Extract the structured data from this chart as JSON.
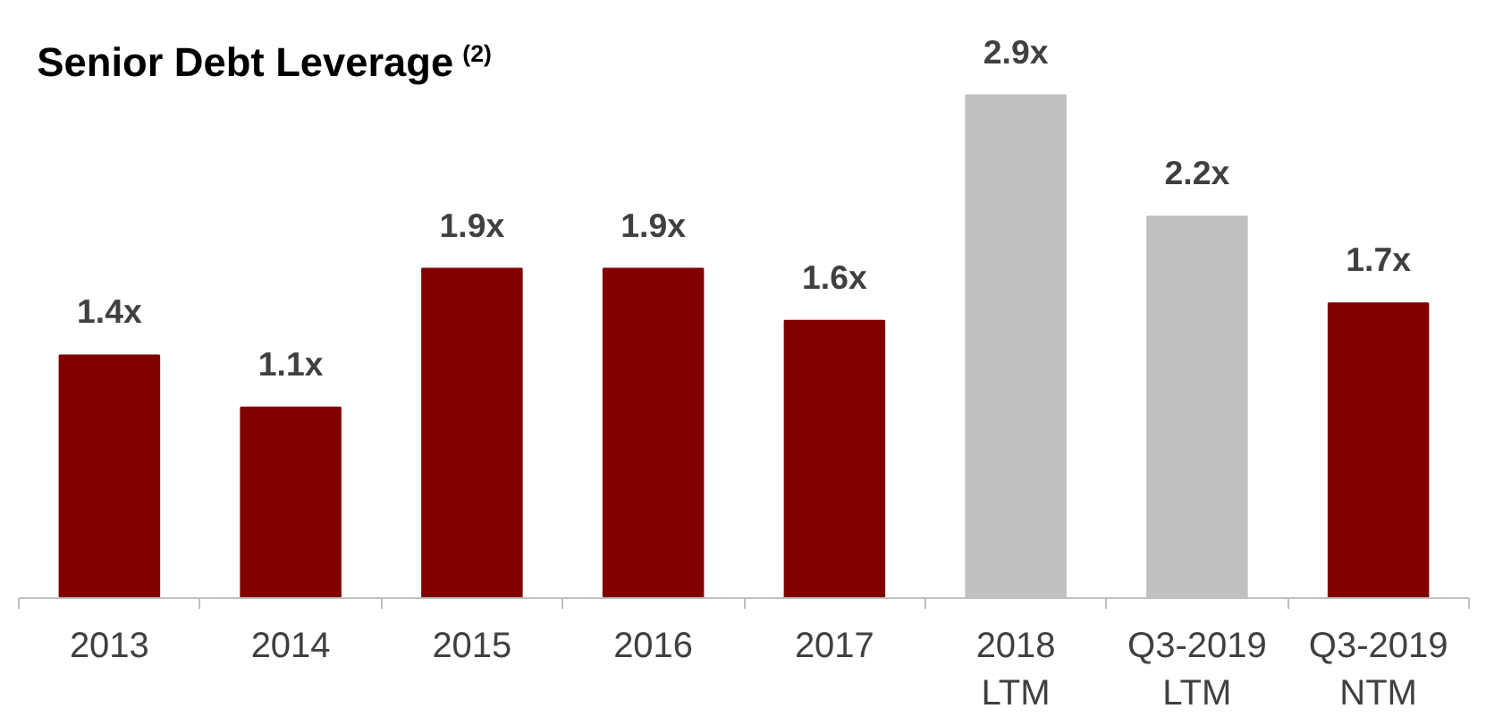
{
  "chart_data": {
    "type": "bar",
    "title": "Senior Debt Leverage $^{(2)}$",
    "categories": [
      "2013",
      "2014",
      "2015",
      "2016",
      "2017",
      "2018\nLTM",
      "Q3-2019\nLTM",
      "Q3-2019\nNTM"
    ],
    "values": [
      1.4,
      1.1,
      1.9,
      1.9,
      1.6,
      2.9,
      2.2,
      1.7
    ],
    "colors": [
      "#800000",
      "#800000",
      "#800000",
      "#800000",
      "#800000",
      "#c0c0c0",
      "#c0c0c0",
      "#800000"
    ],
    "value_labels": [
      "1.4x",
      "1.1x",
      "1.9x",
      "1.9x",
      "1.6x",
      "2.9x",
      "2.2x",
      "1.7x"
    ],
    "grid": false
  }
}
